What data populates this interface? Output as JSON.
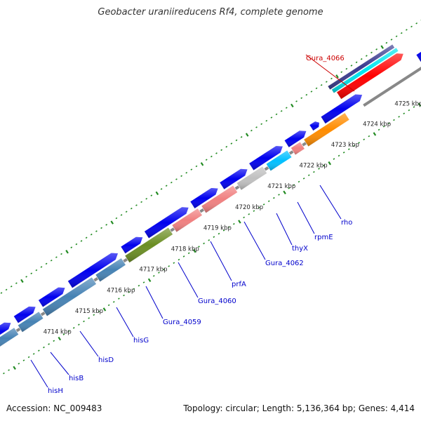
{
  "title": "Geobacter uraniireducens Rf4, complete genome",
  "footer": {
    "accession": "Accession: NC_009483",
    "summary": "Topology: circular; Length: 5,136,364 bp; Genes: 4,414"
  },
  "ruler": {
    "ticks": [
      "4714 kbp",
      "4715 kbp",
      "4716 kbp",
      "4717 kbp",
      "4718 kbp",
      "4719 kbp",
      "4720 kbp",
      "4721 kbp",
      "4722 kbp",
      "4723 kbp",
      "4724 kbp",
      "4725 kbp"
    ]
  },
  "gene_labels": [
    {
      "name": "hisH",
      "color": "#0000cc"
    },
    {
      "name": "hisB",
      "color": "#0000cc"
    },
    {
      "name": "hisD",
      "color": "#0000cc"
    },
    {
      "name": "hisG",
      "color": "#0000cc"
    },
    {
      "name": "Gura_4059",
      "color": "#0000cc"
    },
    {
      "name": "Gura_4060",
      "color": "#0000cc"
    },
    {
      "name": "prfA",
      "color": "#0000cc"
    },
    {
      "name": "Gura_4062",
      "color": "#0000cc"
    },
    {
      "name": "thyX",
      "color": "#0000cc"
    },
    {
      "name": "rpmE",
      "color": "#0000cc"
    },
    {
      "name": "rho",
      "color": "#0000cc"
    },
    {
      "name": "Gura_4066",
      "color": "#cc0000"
    }
  ],
  "colors": {
    "cds": "#0000ee",
    "backbone": "#888888",
    "gc_dots": "#228b22",
    "gene_steelblue": "#4682b4",
    "gene_olive": "#6b8e23",
    "gene_pink": "#f08080",
    "gene_silver": "#c0c0c0",
    "gene_cyan": "#00bfff",
    "gene_orange": "#ff8c00",
    "gene_red": "#ff0000",
    "gene_navy": "#3b3b8f",
    "gene_aqua": "#00e5ee"
  }
}
